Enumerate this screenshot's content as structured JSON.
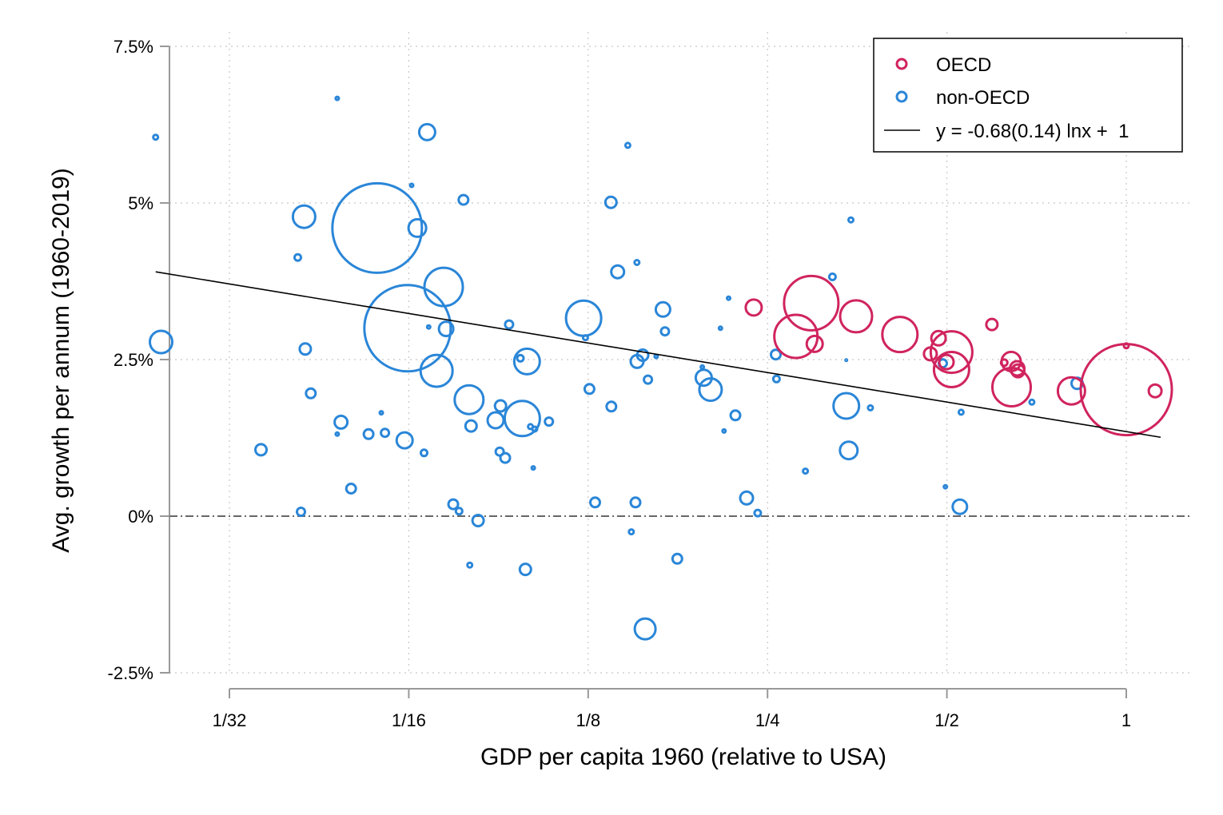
{
  "chart_data": {
    "type": "scatter",
    "xlabel": "GDP per capita 1960 (relative to USA)",
    "ylabel": "Avg. growth per annum (1960-2019)",
    "x_scale": "log2",
    "xlim": [
      0.0223,
      1.2
    ],
    "ylim": [
      -2.5,
      7.5
    ],
    "x_ticks": [
      {
        "value": 0.03125,
        "label": "1/32"
      },
      {
        "value": 0.0625,
        "label": "1/16"
      },
      {
        "value": 0.125,
        "label": "1/8"
      },
      {
        "value": 0.25,
        "label": "1/4"
      },
      {
        "value": 0.5,
        "label": "1/2"
      },
      {
        "value": 1,
        "label": "1"
      }
    ],
    "y_ticks": [
      {
        "value": -2.5,
        "label": "-2.5%"
      },
      {
        "value": 0,
        "label": "0%"
      },
      {
        "value": 2.5,
        "label": "2.5%"
      },
      {
        "value": 5,
        "label": "5%"
      },
      {
        "value": 7.5,
        "label": "7.5%"
      }
    ],
    "grid": true,
    "reference_line_y": 0,
    "legend": {
      "position": "top-right",
      "entries": [
        "OECD",
        "non-OECD",
        "y = -0.68(0.14) lnx +  1"
      ]
    },
    "colors": {
      "OECD": "#d0245e",
      "non-OECD": "#2a86d8",
      "fit": "#000000"
    },
    "fit": {
      "slope": -0.68,
      "intercept": 1.35,
      "x_range": [
        0.0235,
        1.142
      ]
    },
    "series": [
      {
        "name": "OECD",
        "points": [
          {
            "x": 0.237,
            "y": 3.33,
            "s": 10
          },
          {
            "x": 0.296,
            "y": 3.4,
            "s": 34
          },
          {
            "x": 0.279,
            "y": 2.87,
            "s": 27
          },
          {
            "x": 0.3,
            "y": 2.75,
            "s": 10
          },
          {
            "x": 0.352,
            "y": 3.19,
            "s": 20
          },
          {
            "x": 0.417,
            "y": 2.9,
            "s": 22
          },
          {
            "x": 0.469,
            "y": 2.59,
            "s": 8
          },
          {
            "x": 0.484,
            "y": 2.84,
            "s": 9
          },
          {
            "x": 0.509,
            "y": 2.62,
            "s": 26
          },
          {
            "x": 0.509,
            "y": 2.34,
            "s": 22
          },
          {
            "x": 0.499,
            "y": 2.46,
            "s": 9
          },
          {
            "x": 0.595,
            "y": 3.06,
            "s": 7
          },
          {
            "x": 0.624,
            "y": 2.45,
            "s": 4
          },
          {
            "x": 0.641,
            "y": 2.47,
            "s": 12
          },
          {
            "x": 0.656,
            "y": 2.36,
            "s": 9
          },
          {
            "x": 0.658,
            "y": 2.32,
            "s": 8
          },
          {
            "x": 0.642,
            "y": 2.06,
            "s": 24
          },
          {
            "x": 0.809,
            "y": 2.0,
            "s": 17
          },
          {
            "x": 1.0,
            "y": 2.72,
            "s": 3
          },
          {
            "x": 1.0,
            "y": 2.02,
            "s": 57
          },
          {
            "x": 1.118,
            "y": 2.0,
            "s": 8
          }
        ]
      },
      {
        "name": "non-OECD",
        "points": [
          {
            "x": 0.0235,
            "y": 6.05,
            "s": 3
          },
          {
            "x": 0.024,
            "y": 2.78,
            "s": 14
          },
          {
            "x": 0.0353,
            "y": 1.06,
            "s": 7
          },
          {
            "x": 0.0407,
            "y": 4.13,
            "s": 4
          },
          {
            "x": 0.0417,
            "y": 4.78,
            "s": 14
          },
          {
            "x": 0.0412,
            "y": 0.07,
            "s": 5
          },
          {
            "x": 0.0419,
            "y": 2.67,
            "s": 7
          },
          {
            "x": 0.0428,
            "y": 1.96,
            "s": 6
          },
          {
            "x": 0.0474,
            "y": 6.67,
            "s": 2
          },
          {
            "x": 0.0474,
            "y": 1.31,
            "s": 2
          },
          {
            "x": 0.0481,
            "y": 1.5,
            "s": 8
          },
          {
            "x": 0.05,
            "y": 0.44,
            "s": 6
          },
          {
            "x": 0.0535,
            "y": 1.31,
            "s": 6
          },
          {
            "x": 0.0553,
            "y": 4.6,
            "s": 56
          },
          {
            "x": 0.0562,
            "y": 1.65,
            "s": 2
          },
          {
            "x": 0.057,
            "y": 1.33,
            "s": 5
          },
          {
            "x": 0.0615,
            "y": 1.21,
            "s": 10
          },
          {
            "x": 0.0622,
            "y": 3.0,
            "s": 54
          },
          {
            "x": 0.0632,
            "y": 5.28,
            "s": 2
          },
          {
            "x": 0.0646,
            "y": 4.6,
            "s": 11
          },
          {
            "x": 0.0663,
            "y": 1.01,
            "s": 4
          },
          {
            "x": 0.0671,
            "y": 6.13,
            "s": 10
          },
          {
            "x": 0.0675,
            "y": 3.02,
            "s": 2
          },
          {
            "x": 0.0696,
            "y": 2.32,
            "s": 20
          },
          {
            "x": 0.0715,
            "y": 3.66,
            "s": 24
          },
          {
            "x": 0.0722,
            "y": 2.99,
            "s": 9
          },
          {
            "x": 0.0742,
            "y": 0.19,
            "s": 6
          },
          {
            "x": 0.0759,
            "y": 0.08,
            "s": 4
          },
          {
            "x": 0.0772,
            "y": 5.05,
            "s": 6
          },
          {
            "x": 0.0791,
            "y": -0.78,
            "s": 3
          },
          {
            "x": 0.0789,
            "y": 1.86,
            "s": 18
          },
          {
            "x": 0.0795,
            "y": 1.44,
            "s": 7
          },
          {
            "x": 0.0817,
            "y": -0.07,
            "s": 7
          },
          {
            "x": 0.0874,
            "y": 1.53,
            "s": 10
          },
          {
            "x": 0.0888,
            "y": 1.03,
            "s": 5
          },
          {
            "x": 0.0891,
            "y": 1.76,
            "s": 7
          },
          {
            "x": 0.0907,
            "y": 0.93,
            "s": 6
          },
          {
            "x": 0.0921,
            "y": 3.06,
            "s": 5
          },
          {
            "x": 0.0962,
            "y": 2.52,
            "s": 4
          },
          {
            "x": 0.0969,
            "y": 1.56,
            "s": 22
          },
          {
            "x": 0.0987,
            "y": 2.47,
            "s": 16
          },
          {
            "x": 0.0981,
            "y": -0.85,
            "s": 7
          },
          {
            "x": 0.1,
            "y": 1.43,
            "s": 3
          },
          {
            "x": 0.1011,
            "y": 0.77,
            "s": 2
          },
          {
            "x": 0.1017,
            "y": 1.39,
            "s": 3
          },
          {
            "x": 0.1074,
            "y": 1.51,
            "s": 5
          },
          {
            "x": 0.1228,
            "y": 3.16,
            "s": 22
          },
          {
            "x": 0.1237,
            "y": 2.85,
            "s": 3
          },
          {
            "x": 0.1256,
            "y": 2.03,
            "s": 6
          },
          {
            "x": 0.1284,
            "y": 0.22,
            "s": 6
          },
          {
            "x": 0.1365,
            "y": 5.01,
            "s": 7
          },
          {
            "x": 0.1367,
            "y": 1.75,
            "s": 6
          },
          {
            "x": 0.1401,
            "y": 3.9,
            "s": 8
          },
          {
            "x": 0.1457,
            "y": 5.92,
            "s": 3
          },
          {
            "x": 0.1477,
            "y": -0.25,
            "s": 3
          },
          {
            "x": 0.1501,
            "y": 0.22,
            "s": 6
          },
          {
            "x": 0.1509,
            "y": 4.05,
            "s": 3
          },
          {
            "x": 0.151,
            "y": 2.47,
            "s": 8
          },
          {
            "x": 0.1543,
            "y": 2.57,
            "s": 7
          },
          {
            "x": 0.1558,
            "y": -1.8,
            "s": 13
          },
          {
            "x": 0.1575,
            "y": 2.18,
            "s": 5
          },
          {
            "x": 0.1626,
            "y": 2.55,
            "s": 2
          },
          {
            "x": 0.1669,
            "y": 3.3,
            "s": 9
          },
          {
            "x": 0.1682,
            "y": 2.95,
            "s": 5
          },
          {
            "x": 0.1764,
            "y": -0.68,
            "s": 6
          },
          {
            "x": 0.1943,
            "y": 2.38,
            "s": 2
          },
          {
            "x": 0.1954,
            "y": 2.21,
            "s": 10
          },
          {
            "x": 0.2006,
            "y": 2.02,
            "s": 14
          },
          {
            "x": 0.2084,
            "y": 3.0,
            "s": 2
          },
          {
            "x": 0.2113,
            "y": 1.36,
            "s": 2
          },
          {
            "x": 0.2151,
            "y": 3.48,
            "s": 2
          },
          {
            "x": 0.2208,
            "y": 1.61,
            "s": 6
          },
          {
            "x": 0.2306,
            "y": 0.29,
            "s": 8
          },
          {
            "x": 0.2407,
            "y": 0.05,
            "s": 4
          },
          {
            "x": 0.2581,
            "y": 2.58,
            "s": 6
          },
          {
            "x": 0.2588,
            "y": 2.19,
            "s": 4
          },
          {
            "x": 0.2894,
            "y": 0.72,
            "s": 3
          },
          {
            "x": 0.3213,
            "y": 3.82,
            "s": 4
          },
          {
            "x": 0.3389,
            "y": 2.49,
            "s": 1
          },
          {
            "x": 0.345,
            "y": 4.73,
            "s": 3
          },
          {
            "x": 0.3389,
            "y": 1.76,
            "s": 16
          },
          {
            "x": 0.3422,
            "y": 1.05,
            "s": 11
          },
          {
            "x": 0.372,
            "y": 1.73,
            "s": 3
          },
          {
            "x": 0.4922,
            "y": 2.44,
            "s": 5
          },
          {
            "x": 0.497,
            "y": 0.47,
            "s": 2
          },
          {
            "x": 0.5257,
            "y": 0.15,
            "s": 9
          },
          {
            "x": 0.5283,
            "y": 1.66,
            "s": 3
          },
          {
            "x": 0.6944,
            "y": 1.82,
            "s": 3
          },
          {
            "x": 0.8269,
            "y": 2.12,
            "s": 7
          }
        ]
      }
    ]
  }
}
